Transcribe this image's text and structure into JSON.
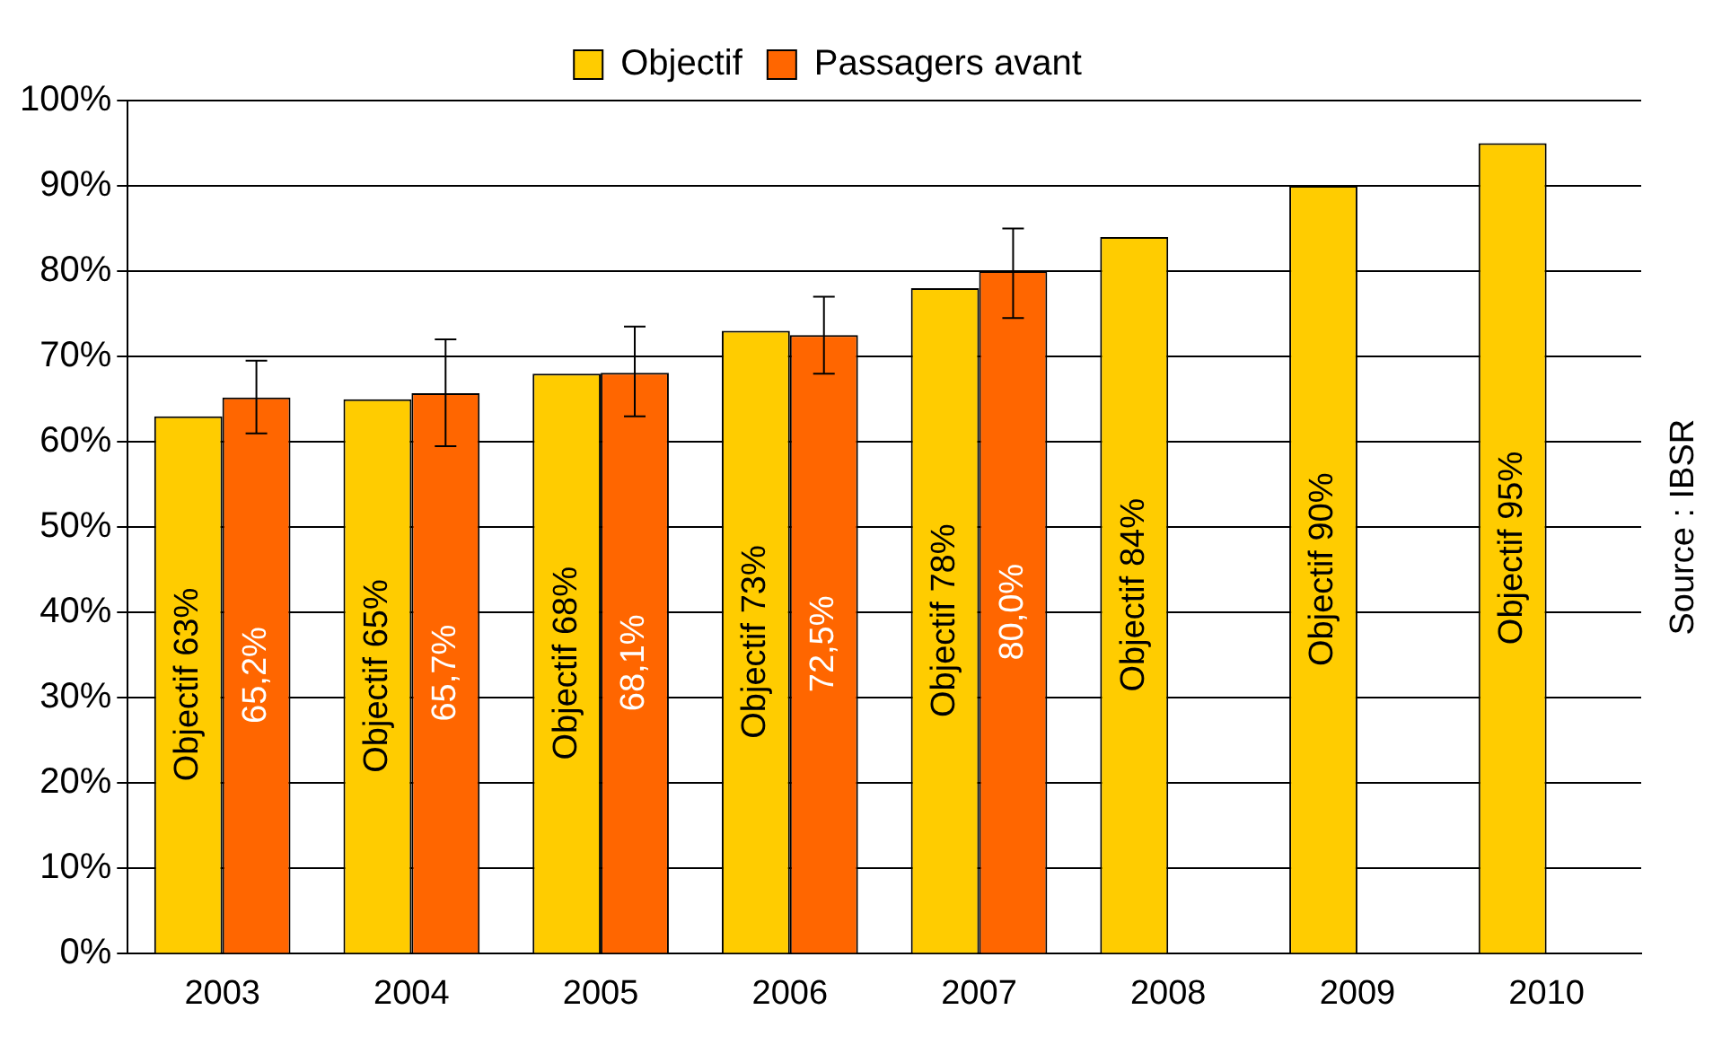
{
  "chart_data": {
    "type": "bar",
    "categories": [
      "2003",
      "2004",
      "2005",
      "2006",
      "2007",
      "2008",
      "2009",
      "2010"
    ],
    "series": [
      {
        "name": "Objectif",
        "color": "#ffcc00",
        "values": [
          63,
          65,
          68,
          73,
          78,
          84,
          90,
          95
        ],
        "value_labels": [
          "Objectif 63%",
          "Objectif 65%",
          "Objectif 68%",
          "Objectif 73%",
          "Objectif 78%",
          "Objectif 84%",
          "Objectif 90%",
          "Objectif 95%"
        ]
      },
      {
        "name": "Passagers avant",
        "color": "#ff6600",
        "values": [
          65.2,
          65.7,
          68.1,
          72.5,
          80.0,
          null,
          null,
          null
        ],
        "value_labels": [
          "65,2%",
          "65,7%",
          "68,1%",
          "72,5%",
          "80,0%",
          null,
          null,
          null
        ],
        "errors": [
          [
            61,
            69.5
          ],
          [
            59.5,
            72
          ],
          [
            63,
            73.5
          ],
          [
            68,
            77
          ],
          [
            74.5,
            85
          ],
          null,
          null,
          null
        ]
      }
    ],
    "ylim": [
      0,
      100
    ],
    "yticks": [
      {
        "value": 0,
        "label": "0%"
      },
      {
        "value": 10,
        "label": "10%"
      },
      {
        "value": 20,
        "label": "20%"
      },
      {
        "value": 30,
        "label": "30%"
      },
      {
        "value": 40,
        "label": "40%"
      },
      {
        "value": 50,
        "label": "50%"
      },
      {
        "value": 60,
        "label": "60%"
      },
      {
        "value": 70,
        "label": "70%"
      },
      {
        "value": 80,
        "label": "80%"
      },
      {
        "value": 90,
        "label": "90%"
      },
      {
        "value": 100,
        "label": "100%"
      }
    ],
    "grid": "y",
    "legend": "top",
    "annotations": [
      "Source : IBSR"
    ]
  }
}
